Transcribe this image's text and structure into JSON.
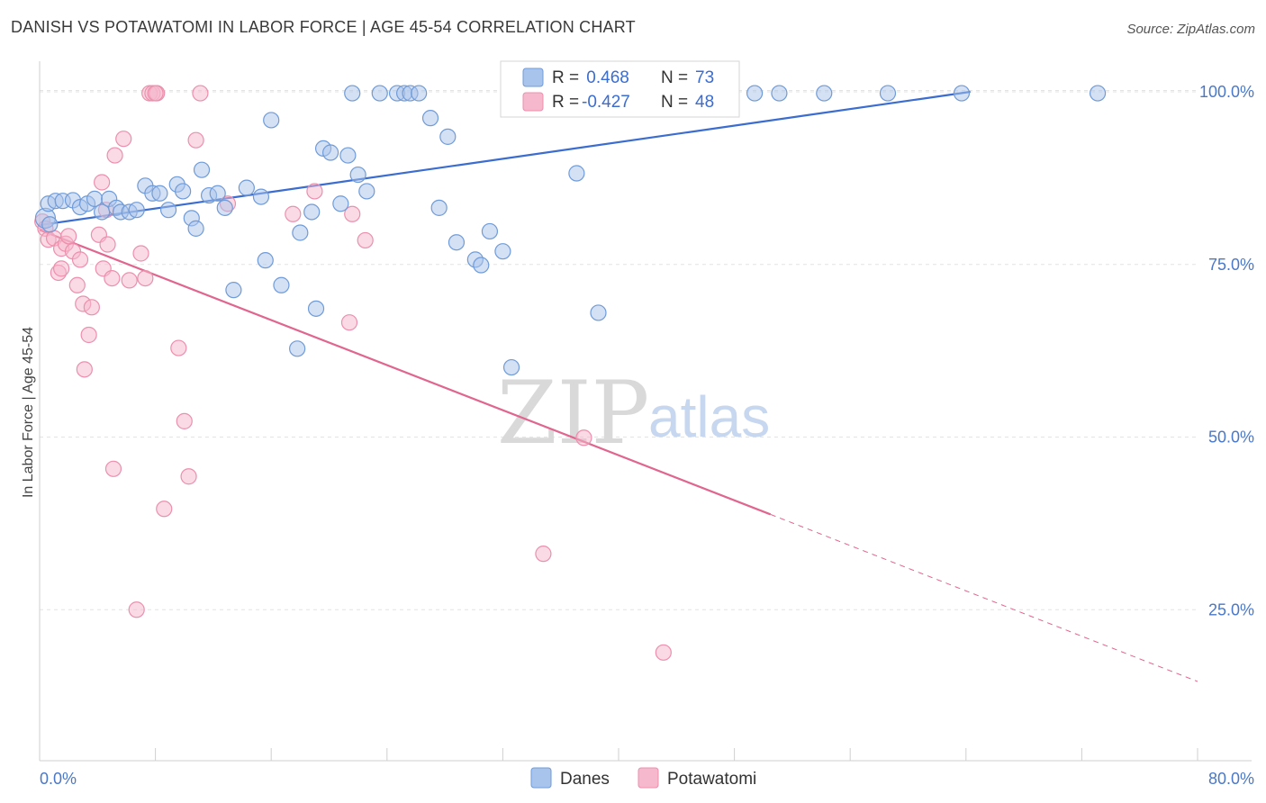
{
  "title": "DANISH VS POTAWATOMI IN LABOR FORCE | AGE 45-54 CORRELATION CHART",
  "source": "Source: ZipAtlas.com",
  "colors": {
    "danes_fill": "#a9c4ec",
    "danes_stroke": "#6f9bd8",
    "danes_line": "#3b6ccf",
    "pota_fill": "#f6b8cc",
    "pota_stroke": "#ec8fad",
    "pota_line": "#e0668f",
    "grid": "#e3e3e3",
    "tick_text": "#4a78c8"
  },
  "legend_top": {
    "rows": [
      {
        "r_label": "R =",
        "r_value": " 0.468",
        "n_label": "N =",
        "n_value": "73",
        "series": "Danes"
      },
      {
        "r_label": "R =",
        "r_value": "-0.427",
        "n_label": "N =",
        "n_value": "48",
        "series": "Potawatomi"
      }
    ]
  },
  "watermark": {
    "zip": "ZIP",
    "atlas": "atlas"
  },
  "chart_data": {
    "type": "scatter",
    "title": "DANISH VS POTAWATOMI IN LABOR FORCE | AGE 45-54 CORRELATION CHART",
    "xlabel": "",
    "ylabel": "In Labor Force | Age 45-54",
    "xlim": [
      0,
      80
    ],
    "ylim": [
      5,
      103
    ],
    "x_ticks": [
      "0.0%",
      "80.0%"
    ],
    "y_ticks": [
      {
        "value": 25,
        "label": "25.0%"
      },
      {
        "value": 50,
        "label": "50.0%"
      },
      {
        "value": 75,
        "label": "75.0%"
      },
      {
        "value": 100,
        "label": "100.0%"
      }
    ],
    "grid": true,
    "legend_position": "bottom",
    "series": [
      {
        "name": "Danes",
        "trend": {
          "x": [
            0,
            64.3
          ],
          "y": [
            80.7,
            100
          ]
        },
        "points": [
          [
            0.4,
            81.7
          ],
          [
            0.6,
            83.8
          ],
          [
            0.7,
            80.8
          ],
          [
            1.1,
            84.2
          ],
          [
            1.6,
            84.2
          ],
          [
            2.3,
            84.3
          ],
          [
            2.8,
            83.3
          ],
          [
            3.3,
            83.8
          ],
          [
            3.8,
            84.5
          ],
          [
            4.3,
            82.6
          ],
          [
            4.8,
            84.5
          ],
          [
            5.3,
            83.2
          ],
          [
            5.6,
            82.6
          ],
          [
            6.2,
            82.6
          ],
          [
            6.7,
            82.9
          ],
          [
            7.3,
            86.4
          ],
          [
            7.8,
            85.3
          ],
          [
            8.3,
            85.3
          ],
          [
            8.9,
            82.9
          ],
          [
            9.5,
            86.6
          ],
          [
            9.9,
            85.6
          ],
          [
            10.5,
            81.7
          ],
          [
            10.8,
            80.2
          ],
          [
            11.2,
            88.7
          ],
          [
            11.7,
            85
          ],
          [
            12.3,
            85.3
          ],
          [
            12.8,
            83.2
          ],
          [
            13.4,
            71.3
          ],
          [
            14.3,
            86.1
          ],
          [
            15.3,
            84.8
          ],
          [
            15.6,
            75.6
          ],
          [
            16,
            95.9
          ],
          [
            16.7,
            72
          ],
          [
            17.8,
            62.8
          ],
          [
            18,
            79.6
          ],
          [
            18.8,
            82.6
          ],
          [
            19.1,
            68.6
          ],
          [
            19.6,
            91.8
          ],
          [
            20.1,
            91.2
          ],
          [
            20.8,
            83.8
          ],
          [
            21.3,
            90.8
          ],
          [
            21.6,
            99.8
          ],
          [
            22,
            88
          ],
          [
            22.6,
            85.6
          ],
          [
            23.5,
            99.8
          ],
          [
            24.7,
            99.8
          ],
          [
            25.2,
            99.8
          ],
          [
            25.6,
            99.8
          ],
          [
            26.2,
            99.8
          ],
          [
            27,
            96.2
          ],
          [
            27.6,
            83.2
          ],
          [
            28.2,
            93.5
          ],
          [
            28.8,
            78.2
          ],
          [
            30.1,
            75.7
          ],
          [
            30.5,
            74.9
          ],
          [
            31.1,
            79.8
          ],
          [
            32,
            76.9
          ],
          [
            32.6,
            60.1
          ],
          [
            33.2,
            99.8
          ],
          [
            35.2,
            99.8
          ],
          [
            37.1,
            88.2
          ],
          [
            38.6,
            68
          ],
          [
            40.1,
            99.8
          ],
          [
            41.8,
            99.8
          ],
          [
            43.8,
            99.8
          ],
          [
            45.7,
            99.8
          ],
          [
            47.6,
            99.8
          ],
          [
            49.4,
            99.8
          ],
          [
            51.1,
            99.8
          ],
          [
            54.2,
            99.8
          ],
          [
            58.6,
            99.8
          ],
          [
            63.7,
            99.8
          ],
          [
            73.1,
            99.8
          ]
        ]
      },
      {
        "name": "Potawatomi",
        "trend": {
          "x": [
            0,
            50.5
          ],
          "y": [
            80,
            38.8
          ]
        },
        "trend_dashed": {
          "x": [
            50.5,
            80
          ],
          "y": [
            38.8,
            14.6
          ]
        },
        "points": [
          [
            0.2,
            81.2
          ],
          [
            0.4,
            80.2
          ],
          [
            0.6,
            78.6
          ],
          [
            1,
            78.8
          ],
          [
            1.3,
            73.8
          ],
          [
            1.5,
            74.4
          ],
          [
            1.5,
            77.3
          ],
          [
            1.8,
            78
          ],
          [
            2,
            79.1
          ],
          [
            2.3,
            76.9
          ],
          [
            2.6,
            72
          ],
          [
            2.8,
            75.7
          ],
          [
            3,
            69.3
          ],
          [
            3.1,
            59.8
          ],
          [
            3.4,
            64.8
          ],
          [
            3.6,
            68.8
          ],
          [
            4.1,
            79.3
          ],
          [
            4.3,
            86.9
          ],
          [
            4.4,
            74.4
          ],
          [
            4.6,
            82.9
          ],
          [
            4.7,
            77.9
          ],
          [
            5,
            73
          ],
          [
            5.1,
            45.4
          ],
          [
            5.2,
            90.8
          ],
          [
            5.8,
            93.2
          ],
          [
            6.2,
            72.7
          ],
          [
            6.7,
            25
          ],
          [
            7,
            76.6
          ],
          [
            7.3,
            73
          ],
          [
            7.6,
            99.8
          ],
          [
            7.8,
            99.8
          ],
          [
            8.1,
            99.8
          ],
          [
            8.6,
            39.6
          ],
          [
            9.6,
            62.9
          ],
          [
            10,
            52.3
          ],
          [
            10.3,
            44.3
          ],
          [
            10.8,
            93
          ],
          [
            11.1,
            99.8
          ],
          [
            13,
            83.8
          ],
          [
            17.5,
            82.3
          ],
          [
            19,
            85.6
          ],
          [
            21.4,
            66.6
          ],
          [
            21.6,
            82.3
          ],
          [
            22.5,
            78.5
          ],
          [
            34.8,
            33.1
          ],
          [
            37.6,
            49.9
          ],
          [
            43.1,
            18.8
          ],
          [
            8.0,
            99.8
          ]
        ]
      }
    ]
  }
}
